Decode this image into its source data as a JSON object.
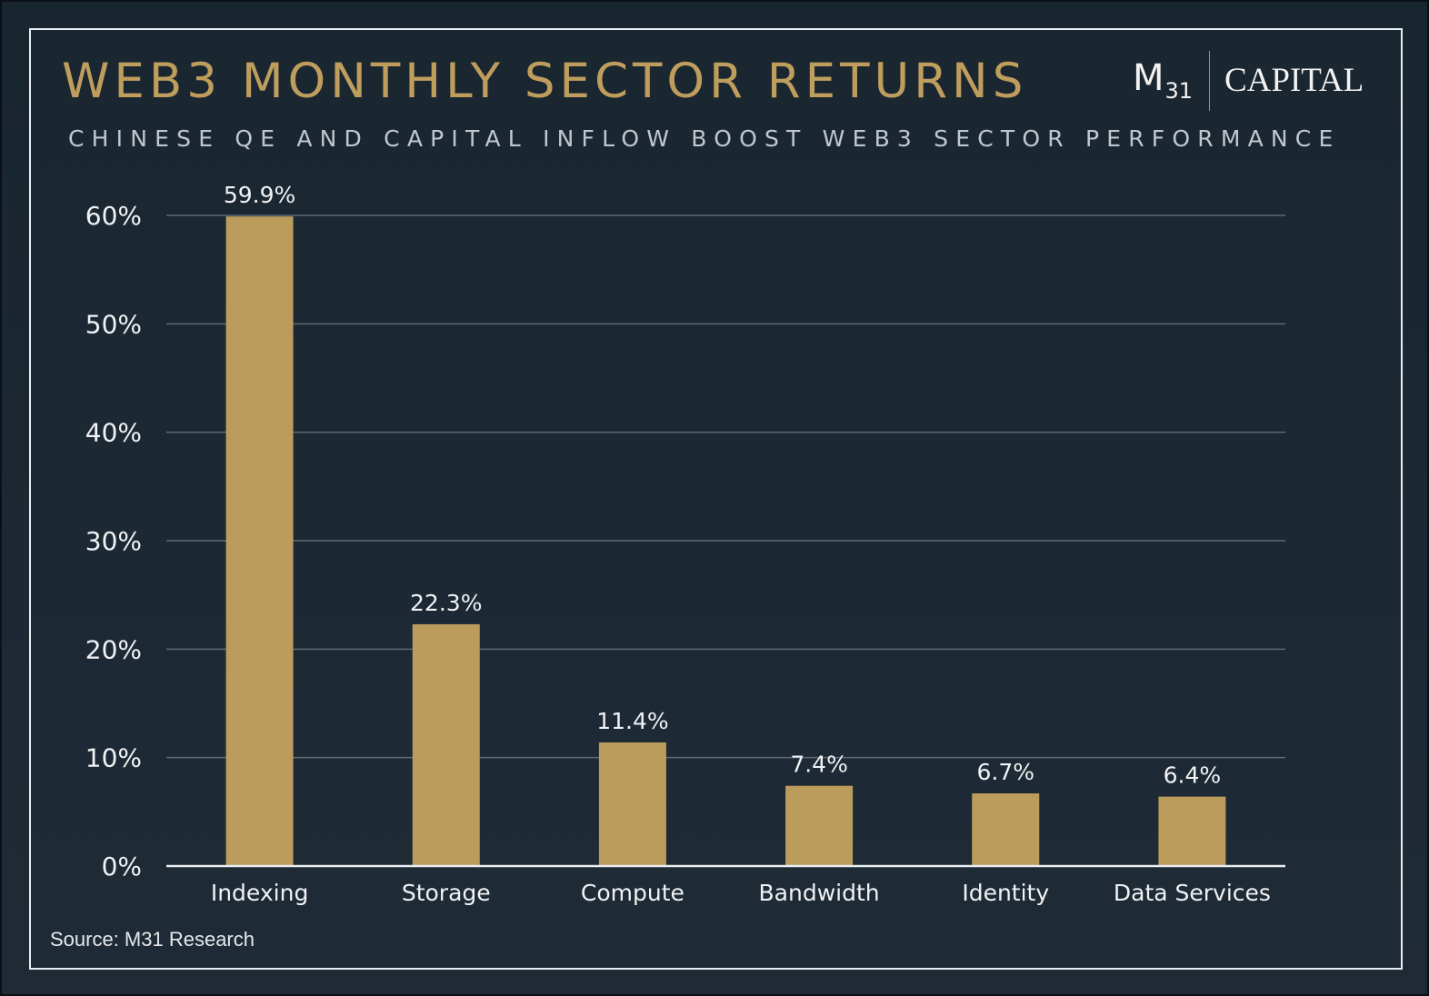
{
  "header": {
    "title": "WEB3 MONTHLY SECTOR RETURNS",
    "subtitle": "CHINESE QE AND CAPITAL INFLOW BOOST WEB3 SECTOR PERFORMANCE"
  },
  "logo": {
    "m": "M",
    "sub": "31",
    "name": "CAPITAL"
  },
  "footer": {
    "source": "Source: M31 Research"
  },
  "colors": {
    "bar": "#bc9c5c",
    "title": "#bf9e5d",
    "grid": "#5f6a73",
    "baseline": "#e9eef2",
    "text": "#f0f2f4",
    "background": "#1e2a35"
  },
  "chart_data": {
    "type": "bar",
    "title": "WEB3 MONTHLY SECTOR RETURNS",
    "subtitle": "CHINESE QE AND CAPITAL INFLOW BOOST WEB3 SECTOR PERFORMANCE",
    "xlabel": "",
    "ylabel": "",
    "categories": [
      "Indexing",
      "Storage",
      "Compute",
      "Bandwidth",
      "Identity",
      "Data Services"
    ],
    "values": [
      59.9,
      22.3,
      11.4,
      7.4,
      6.7,
      6.4
    ],
    "data_labels": [
      "59.9%",
      "22.3%",
      "11.4%",
      "7.4%",
      "6.7%",
      "6.4%"
    ],
    "ylim": [
      0,
      60
    ],
    "yticks": [
      0,
      10,
      20,
      30,
      40,
      50,
      60
    ],
    "ytick_labels": [
      "0%",
      "10%",
      "20%",
      "30%",
      "40%",
      "50%",
      "60%"
    ],
    "grid": true,
    "legend": "none"
  }
}
